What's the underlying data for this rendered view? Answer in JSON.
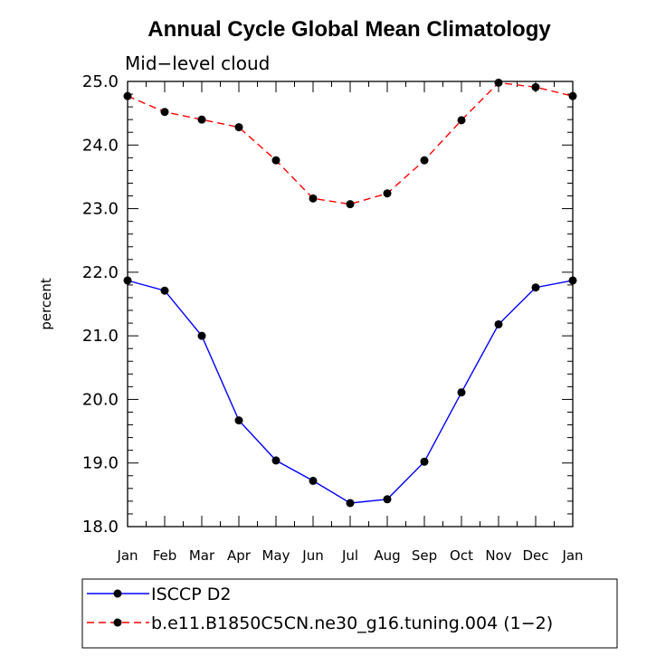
{
  "chart_data": {
    "type": "line",
    "title": "Annual Cycle Global Mean Climatology",
    "subtitle": "Mid−level cloud",
    "xlabel": "",
    "ylabel": "percent",
    "categories": [
      "Jan",
      "Feb",
      "Mar",
      "Apr",
      "May",
      "Jun",
      "Jul",
      "Aug",
      "Sep",
      "Oct",
      "Nov",
      "Dec",
      "Jan"
    ],
    "ylim": [
      18.0,
      25.0
    ],
    "yticks": [
      "18.0",
      "19.0",
      "20.0",
      "21.0",
      "22.0",
      "23.0",
      "24.0",
      "25.0"
    ],
    "grid": false,
    "legend_position": "bottom",
    "series": [
      {
        "name": "ISCCP D2",
        "color": "#0000ff",
        "line_style": "solid",
        "marker": "filled-circle",
        "values": [
          21.87,
          21.71,
          21.0,
          19.67,
          19.04,
          18.72,
          18.37,
          18.43,
          19.02,
          20.11,
          21.18,
          21.76,
          21.87
        ]
      },
      {
        "name": "b.e11.B1850C5CN.ne30_g16.tuning.004 (1−2)",
        "color": "#ff0000",
        "line_style": "dashed",
        "marker": "filled-circle",
        "values": [
          24.77,
          24.52,
          24.4,
          24.28,
          23.76,
          23.16,
          23.07,
          23.24,
          23.76,
          24.39,
          24.98,
          24.91,
          24.77
        ]
      }
    ]
  }
}
